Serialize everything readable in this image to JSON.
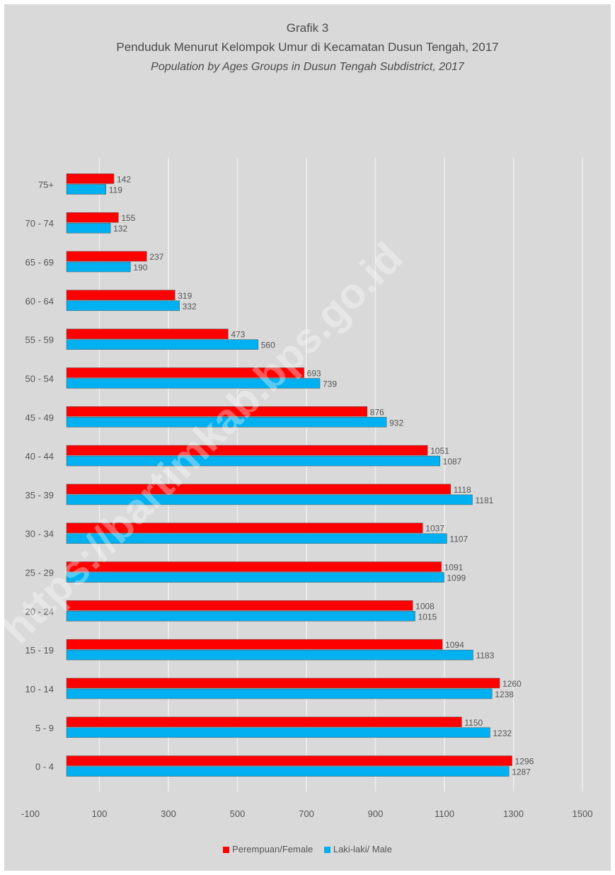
{
  "header": {
    "grafik": "Grafik 3",
    "title": "Penduduk Menurut Kelompok Umur di Kecamatan Dusun Tengah, 2017",
    "subtitle": "Population by Ages Groups in Dusun Tengah Subdistrict, 2017"
  },
  "watermark": "https://bartimkab.bps.go.id",
  "colors": {
    "female": "#ff0000",
    "male": "#00b0f0",
    "background": "#d9d9d9",
    "grid": "#efefef"
  },
  "chart_data": {
    "type": "bar",
    "orientation": "horizontal",
    "categories": [
      "75+",
      "70 - 74",
      "65 - 69",
      "60 - 64",
      "55 - 59",
      "50 - 54",
      "45 - 49",
      "40 - 44",
      "35 - 39",
      "30 - 34",
      "25 - 29",
      "20 - 24",
      "15 - 19",
      "10 - 14",
      "5 - 9",
      "0 - 4"
    ],
    "series": [
      {
        "name": "Perempuan/Female",
        "values": [
          142,
          155,
          237,
          319,
          473,
          693,
          876,
          1051,
          1118,
          1037,
          1091,
          1008,
          1094,
          1260,
          1150,
          1296
        ]
      },
      {
        "name": "Laki-laki/ Male",
        "values": [
          119,
          132,
          190,
          332,
          560,
          739,
          932,
          1087,
          1181,
          1107,
          1099,
          1015,
          1183,
          1238,
          1232,
          1287
        ]
      }
    ],
    "xlim": [
      -100,
      1500
    ],
    "xticks": [
      "-100",
      "100",
      "300",
      "500",
      "700",
      "900",
      "1100",
      "1300",
      "1500"
    ],
    "grid": true,
    "legend_position": "bottom"
  }
}
